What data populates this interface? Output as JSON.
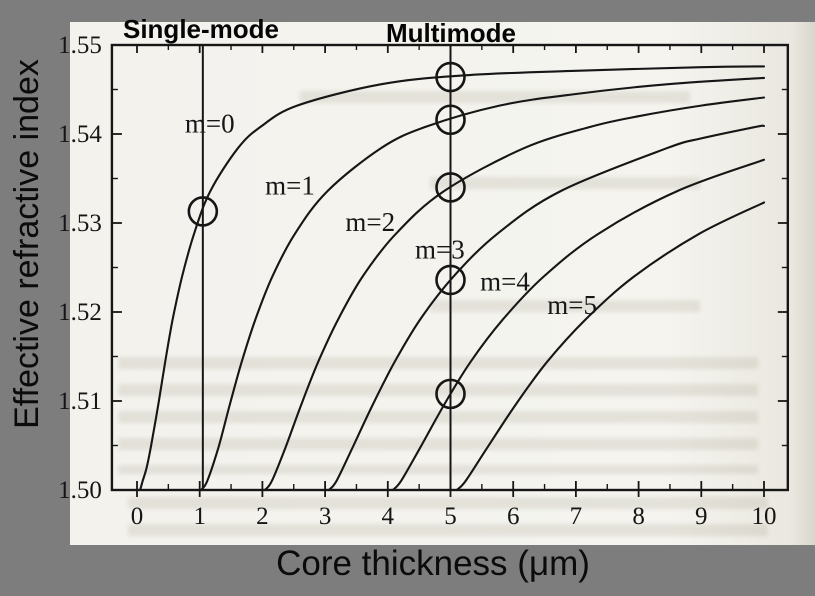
{
  "window": {
    "background_color": "#7d7d7d",
    "paper_color": "#f5f4ef",
    "ink_color": "#161616"
  },
  "chart_data": {
    "type": "line",
    "xlabel": "Core thickness (μm)",
    "ylabel": "Effective refractive index",
    "xlim": [
      -0.4,
      10.38
    ],
    "ylim": [
      1.5,
      1.55
    ],
    "grid": false,
    "x_ticks_major": [
      0,
      1,
      2,
      3,
      4,
      5,
      6,
      7,
      8,
      9,
      10
    ],
    "x_tick_labels": [
      "0",
      "1",
      "2",
      "3",
      "4",
      "5",
      "6",
      "7",
      "8",
      "9",
      "10"
    ],
    "x_ticks_minor": [
      0.5,
      1.5,
      2.5,
      3.5,
      4.5,
      5.5,
      6.5,
      7.5,
      8.5,
      9.5
    ],
    "y_ticks_major": [
      1.5,
      1.51,
      1.52,
      1.53,
      1.54,
      1.55
    ],
    "y_tick_labels": [
      "1.50",
      "1.51",
      "1.52",
      "1.53",
      "1.54",
      "1.55"
    ],
    "y_ticks_minor": [
      1.505,
      1.515,
      1.525,
      1.535,
      1.545
    ],
    "region_labels": [
      {
        "text": "Single-mode",
        "x": 1.05
      },
      {
        "text": "Multimode",
        "x": 5.0
      }
    ],
    "vertical_lines": [
      {
        "name": "single-mode-boundary",
        "x": 1.05
      },
      {
        "name": "multimode-boundary",
        "x": 5.0
      }
    ],
    "series": [
      {
        "name": "m=0",
        "points": [
          [
            0.05,
            1.5
          ],
          [
            0.09,
            1.501
          ],
          [
            0.15,
            1.5024
          ],
          [
            0.22,
            1.5048
          ],
          [
            0.34,
            1.5096
          ],
          [
            0.45,
            1.5144
          ],
          [
            0.57,
            1.5192
          ],
          [
            0.72,
            1.524
          ],
          [
            0.91,
            1.5288
          ],
          [
            1.17,
            1.5336
          ],
          [
            1.61,
            1.5384
          ],
          [
            1.97,
            1.5408
          ],
          [
            2.56,
            1.5432
          ],
          [
            3.9,
            1.5456
          ],
          [
            5.24,
            1.5466
          ],
          [
            7.0,
            1.5471
          ],
          [
            9.0,
            1.5475
          ],
          [
            10,
            1.5476
          ]
        ]
      },
      {
        "name": "m=1",
        "points": [
          [
            1.02,
            1.5
          ],
          [
            1.12,
            1.501
          ],
          [
            1.3,
            1.5048
          ],
          [
            1.48,
            1.5096
          ],
          [
            1.67,
            1.5144
          ],
          [
            1.89,
            1.5192
          ],
          [
            2.16,
            1.524
          ],
          [
            2.52,
            1.5288
          ],
          [
            3.04,
            1.5336
          ],
          [
            3.89,
            1.5384
          ],
          [
            4.6,
            1.5408
          ],
          [
            5.79,
            1.5432
          ],
          [
            7.0,
            1.5445
          ],
          [
            8.47,
            1.5456
          ],
          [
            10,
            1.5463
          ]
        ]
      },
      {
        "name": "m=2",
        "points": [
          [
            2.04,
            1.5
          ],
          [
            2.15,
            1.501
          ],
          [
            2.37,
            1.5048
          ],
          [
            2.62,
            1.5096
          ],
          [
            2.89,
            1.5144
          ],
          [
            3.21,
            1.5192
          ],
          [
            3.6,
            1.524
          ],
          [
            4.13,
            1.5288
          ],
          [
            4.9,
            1.5336
          ],
          [
            6.17,
            1.5384
          ],
          [
            7.23,
            1.5408
          ],
          [
            8.0,
            1.542
          ],
          [
            9.01,
            1.5432
          ],
          [
            10,
            1.5441
          ]
        ]
      },
      {
        "name": "m=3",
        "points": [
          [
            3.06,
            1.5
          ],
          [
            3.18,
            1.501
          ],
          [
            3.44,
            1.5048
          ],
          [
            3.76,
            1.5096
          ],
          [
            4.11,
            1.5144
          ],
          [
            4.52,
            1.5192
          ],
          [
            5.05,
            1.524
          ],
          [
            5.75,
            1.5288
          ],
          [
            6.76,
            1.5336
          ],
          [
            8.45,
            1.5384
          ],
          [
            9.0,
            1.5395
          ],
          [
            9.87,
            1.5408
          ],
          [
            10,
            1.5409
          ]
        ]
      },
      {
        "name": "m=4",
        "points": [
          [
            4.08,
            1.5
          ],
          [
            4.21,
            1.501
          ],
          [
            4.52,
            1.5048
          ],
          [
            4.9,
            1.5096
          ],
          [
            5.32,
            1.5144
          ],
          [
            5.84,
            1.5192
          ],
          [
            6.49,
            1.524
          ],
          [
            7.36,
            1.5288
          ],
          [
            8.62,
            1.5336
          ],
          [
            10,
            1.5371
          ]
        ]
      },
      {
        "name": "m=5",
        "points": [
          [
            5.1,
            1.5
          ],
          [
            5.24,
            1.501
          ],
          [
            5.59,
            1.5048
          ],
          [
            6.04,
            1.5096
          ],
          [
            6.54,
            1.5144
          ],
          [
            7.16,
            1.5192
          ],
          [
            7.93,
            1.524
          ],
          [
            8.97,
            1.5288
          ],
          [
            10,
            1.5323
          ]
        ]
      }
    ],
    "curve_labels": [
      {
        "text": "m=0",
        "x": 1.16,
        "y": 1.5412
      },
      {
        "text": "m=1",
        "x": 2.44,
        "y": 1.5342
      },
      {
        "text": "m=2",
        "x": 3.72,
        "y": 1.5301
      },
      {
        "text": "m=3",
        "x": 4.83,
        "y": 1.527
      },
      {
        "text": "m=4",
        "x": 5.87,
        "y": 1.5234
      },
      {
        "text": "m=5",
        "x": 6.94,
        "y": 1.5208
      }
    ],
    "mode_markers": [
      {
        "on_line": "single-mode-boundary",
        "x": 1.05,
        "y": 1.5313
      },
      {
        "on_line": "multimode-boundary",
        "x": 5.0,
        "y": 1.5464
      },
      {
        "on_line": "multimode-boundary",
        "x": 5.0,
        "y": 1.5416
      },
      {
        "on_line": "multimode-boundary",
        "x": 5.0,
        "y": 1.534
      },
      {
        "on_line": "multimode-boundary",
        "x": 5.0,
        "y": 1.5236
      },
      {
        "on_line": "multimode-boundary",
        "x": 5.0,
        "y": 1.5108
      }
    ]
  }
}
